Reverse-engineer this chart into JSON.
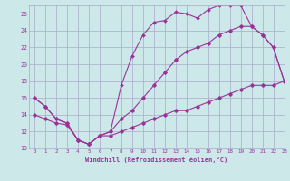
{
  "xlabel": "Windchill (Refroidissement éolien,°C)",
  "hours": [
    0,
    1,
    2,
    3,
    4,
    5,
    6,
    7,
    8,
    9,
    10,
    11,
    12,
    13,
    14,
    15,
    16,
    17,
    18,
    19,
    20,
    21,
    22,
    23
  ],
  "curve_top": [
    16.0,
    15.0,
    13.5,
    13.0,
    11.0,
    10.5,
    11.5,
    12.0,
    17.5,
    21.0,
    23.5,
    25.0,
    25.2,
    26.2,
    26.0,
    25.5,
    26.5,
    27.0,
    27.0,
    27.0,
    24.5,
    23.5,
    22.0,
    18.0
  ],
  "curve_mid": [
    16.0,
    15.0,
    13.5,
    13.0,
    11.0,
    10.5,
    11.5,
    12.0,
    13.5,
    14.5,
    16.0,
    17.5,
    19.0,
    20.5,
    21.5,
    22.0,
    22.5,
    23.5,
    24.0,
    24.5,
    24.5,
    23.5,
    22.0,
    18.0
  ],
  "curve_bot": [
    14.0,
    13.5,
    13.0,
    12.8,
    11.0,
    10.5,
    11.5,
    11.5,
    12.0,
    12.5,
    13.0,
    13.5,
    14.0,
    14.5,
    14.5,
    15.0,
    15.5,
    16.0,
    16.5,
    17.0,
    17.5,
    17.5,
    17.5,
    18.0
  ],
  "ylim": [
    10,
    27
  ],
  "xlim": [
    -0.5,
    23
  ],
  "yticks": [
    10,
    12,
    14,
    16,
    18,
    20,
    22,
    24,
    26
  ],
  "xticks": [
    0,
    1,
    2,
    3,
    4,
    5,
    6,
    7,
    8,
    9,
    10,
    11,
    12,
    13,
    14,
    15,
    16,
    17,
    18,
    19,
    20,
    21,
    22,
    23
  ],
  "line_color": "#993399",
  "bg_color": "#cce8e8",
  "grid_color": "#aaaacc",
  "font_color": "#993399"
}
